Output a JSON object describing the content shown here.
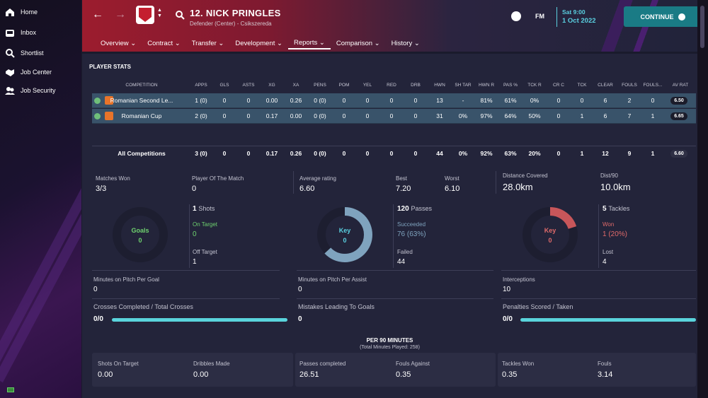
{
  "sidebar": {
    "items": [
      {
        "label": "Home"
      },
      {
        "label": "Inbox"
      },
      {
        "label": "Shortlist"
      },
      {
        "label": "Job Center"
      },
      {
        "label": "Job Security"
      }
    ]
  },
  "header": {
    "player_name": "12. NICK PRINGLES",
    "player_role": "Defender (Center) - Csikszereda",
    "date_day": "Sat 9:00",
    "date_full": "1 Oct 2022",
    "fm_label": "FM",
    "continue_label": "CONTINUE",
    "tabs": [
      {
        "label": "Overview"
      },
      {
        "label": "Contract"
      },
      {
        "label": "Transfer"
      },
      {
        "label": "Development"
      },
      {
        "label": "Reports"
      },
      {
        "label": "Comparison"
      },
      {
        "label": "History"
      }
    ]
  },
  "stats": {
    "title": "PLAYER STATS",
    "headers": [
      "COMPETITION",
      "APPS",
      "GLS",
      "ASTS",
      "XG",
      "XA",
      "PENS",
      "POM",
      "YEL",
      "RED",
      "DRB",
      "HWN",
      "SH TAR",
      "HWN R",
      "PAS %",
      "TCK R",
      "CR C",
      "TCK",
      "CLEAR",
      "FOULS",
      "FOULS...",
      "AV RAT"
    ],
    "rows": [
      {
        "values": [
          "Romanian Second Le...",
          "1 (0)",
          "0",
          "0",
          "0.00",
          "0.26",
          "0 (0)",
          "0",
          "0",
          "0",
          "0",
          "13",
          "-",
          "81%",
          "61%",
          "0%",
          "0",
          "0",
          "6",
          "2",
          "0",
          "6.50"
        ]
      },
      {
        "values": [
          "Romanian Cup",
          "2 (0)",
          "0",
          "0",
          "0.17",
          "0.00",
          "0 (0)",
          "0",
          "0",
          "0",
          "0",
          "31",
          "0%",
          "97%",
          "64%",
          "50%",
          "0",
          "1",
          "6",
          "7",
          "1",
          "6.65"
        ]
      }
    ],
    "total": {
      "values": [
        "All Competitions",
        "3 (0)",
        "0",
        "0",
        "0.17",
        "0.26",
        "0 (0)",
        "0",
        "0",
        "0",
        "0",
        "44",
        "0%",
        "92%",
        "63%",
        "20%",
        "0",
        "1",
        "12",
        "9",
        "1",
        "6.60"
      ]
    }
  },
  "summary": {
    "matches_won_label": "Matches Won",
    "matches_won": "3/3",
    "potm_label": "Player Of The Match",
    "potm": "0",
    "avg_rating_label": "Average rating",
    "avg_rating": "6.60",
    "best_label": "Best",
    "best": "7.20",
    "worst_label": "Worst",
    "worst": "6.10",
    "distance_label": "Distance Covered",
    "distance": "28.0km",
    "dist90_label": "Dist/90",
    "dist90": "10.0km"
  },
  "goals": {
    "donut_label": "Goals",
    "donut_value": "0",
    "shots_count": "1",
    "shots_label": "Shots",
    "on_target_label": "On Target",
    "on_target": "0",
    "off_target_label": "Off Target",
    "off_target": "1"
  },
  "passes": {
    "donut_label": "Key",
    "donut_value": "0",
    "count": "120",
    "label": "Passes",
    "succeeded_label": "Succeeded",
    "succeeded": "76 (63%)",
    "failed_label": "Failed",
    "failed": "44",
    "completion": 0.63
  },
  "tackles": {
    "donut_label": "Key",
    "donut_value": "0",
    "count": "5",
    "label": "Tackles",
    "won_label": "Won",
    "won": "1 (20%)",
    "lost_label": "Lost",
    "lost": "4",
    "won_ratio": 0.2
  },
  "extra": {
    "mpg_label": "Minutes on Pitch Per Goal",
    "mpg": "0",
    "mpa_label": "Minutes on Pitch Per Assist",
    "mpa": "0",
    "int_label": "Interceptions",
    "int": "10",
    "crosses_label": "Crosses Completed / Total Crosses",
    "crosses": "0/0",
    "mistakes_label": "Mistakes Leading To Goals",
    "mistakes": "0",
    "pens_label": "Penalties Scored / Taken",
    "pens": "0/0"
  },
  "per90": {
    "title": "PER 90 MINUTES",
    "subtitle": "(Total Minutes Played: 258)",
    "items": [
      {
        "label": "Shots On Target",
        "value": "0.00"
      },
      {
        "label": "Dribbles Made",
        "value": "0.00"
      },
      {
        "label": "Passes completed",
        "value": "26.51"
      },
      {
        "label": "Fouls Against",
        "value": "0.35"
      },
      {
        "label": "Tackles Won",
        "value": "0.35"
      },
      {
        "label": "Fouls",
        "value": "3.14"
      }
    ]
  },
  "colors": {
    "accent": "#5ad0e0",
    "passes_ring": "#7fa3be",
    "tackle_ring": "#c8565a",
    "goal_green": "#6fd36f"
  }
}
